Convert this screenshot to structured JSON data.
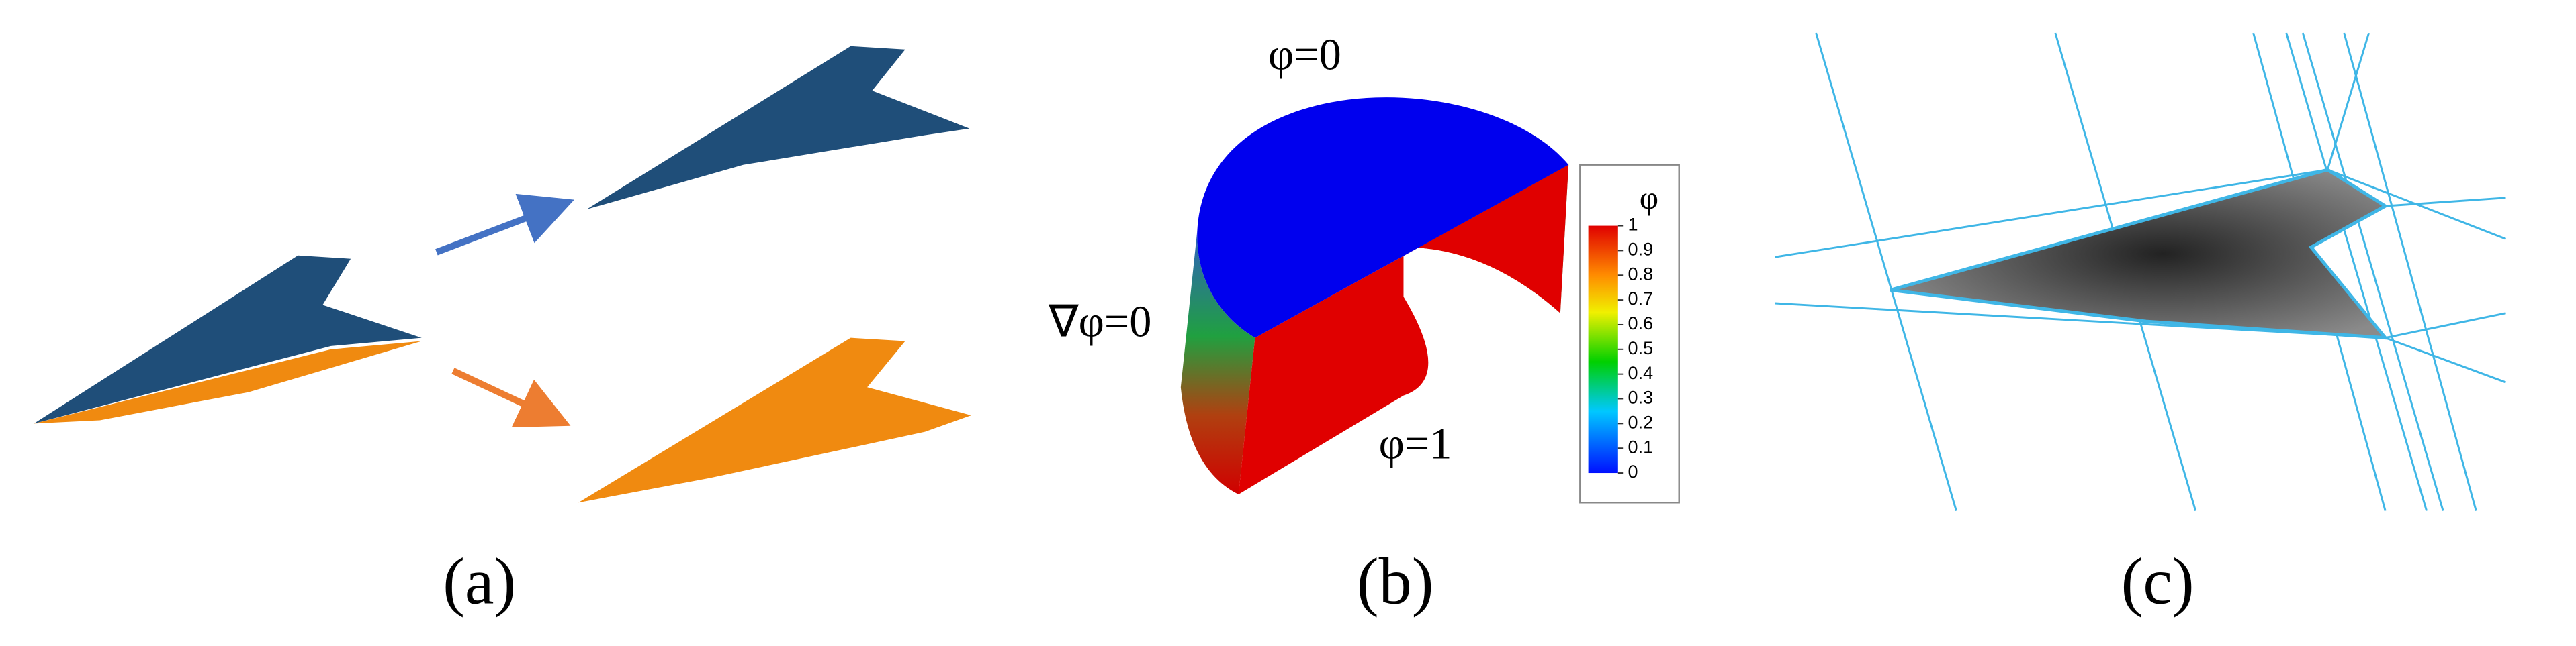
{
  "panels": [
    {
      "caption": "(a)"
    },
    {
      "caption": "(b)",
      "labels": [
        "φ=0",
        "∇φ=0",
        "φ=1"
      ],
      "colorbar": {
        "title": "φ",
        "ticks": [
          1,
          0.9,
          0.8,
          0.7,
          0.6,
          0.5,
          0.4,
          0.3,
          0.2,
          0.1,
          0
        ]
      }
    },
    {
      "caption": "(c)"
    }
  ]
}
